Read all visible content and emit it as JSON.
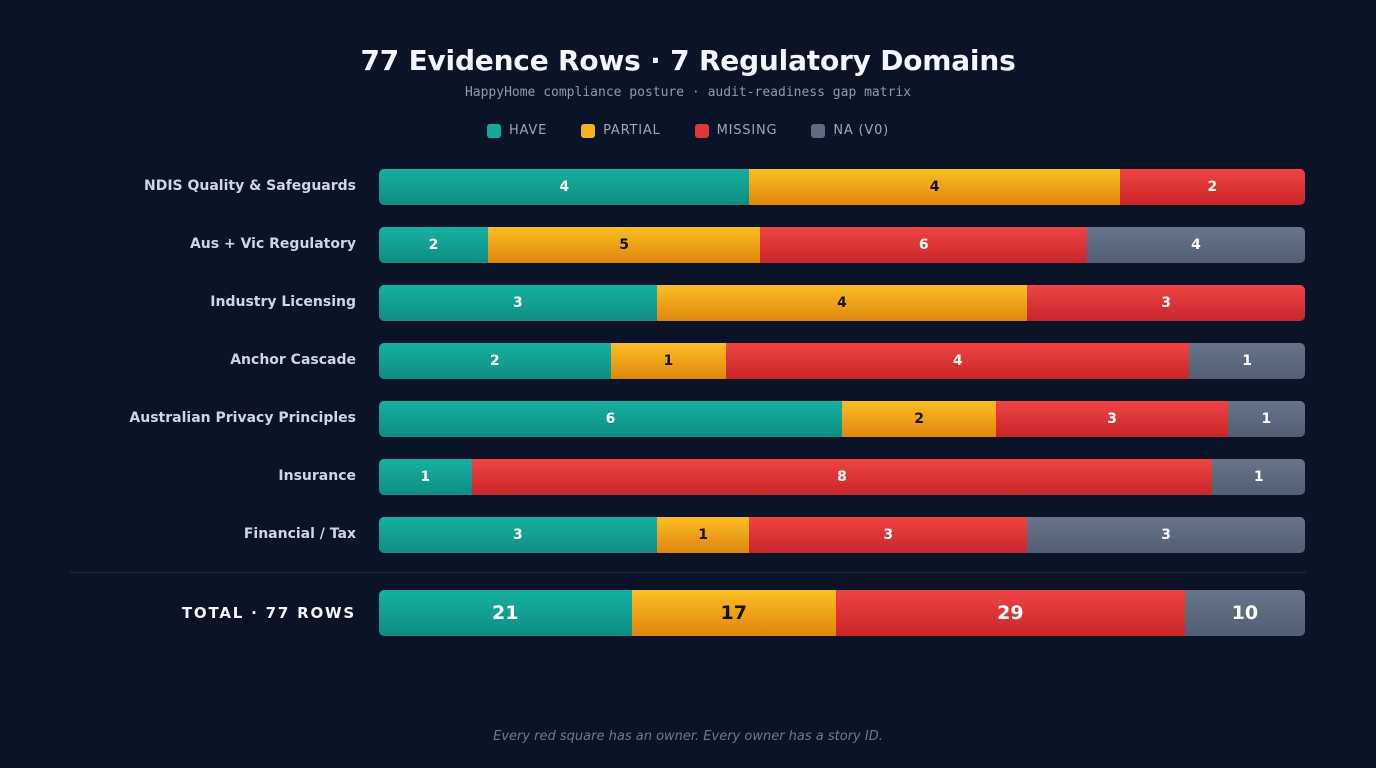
{
  "header": {
    "title": "77 Evidence Rows · 7 Regulatory Domains",
    "subtitle": "HappyHome compliance posture · audit-readiness gap matrix"
  },
  "legend": [
    {
      "label": "HAVE",
      "color": "#14a899"
    },
    {
      "label": "PARTIAL",
      "color": "#f5b41d"
    },
    {
      "label": "MISSING",
      "color": "#e03838"
    },
    {
      "label": "NA (V0)",
      "color": "#5f6b80"
    }
  ],
  "chart_data": {
    "type": "bar",
    "stacked": true,
    "orientation": "horizontal",
    "title": "77 Evidence Rows · 7 Regulatory Domains",
    "subtitle": "HappyHome compliance posture · audit-readiness gap matrix",
    "categories": [
      "NDIS Quality & Safeguards",
      "Aus + Vic Regulatory",
      "Industry Licensing",
      "Anchor Cascade",
      "Australian Privacy Principles",
      "Insurance",
      "Financial / Tax"
    ],
    "series": [
      {
        "name": "HAVE",
        "key": "have",
        "color": "#14a899",
        "values": [
          4,
          2,
          3,
          2,
          6,
          1,
          3
        ]
      },
      {
        "name": "PARTIAL",
        "key": "partial",
        "color": "#f5b41d",
        "values": [
          4,
          5,
          4,
          1,
          2,
          0,
          1
        ]
      },
      {
        "name": "MISSING",
        "key": "missing",
        "color": "#e03838",
        "values": [
          2,
          6,
          3,
          4,
          3,
          8,
          3
        ]
      },
      {
        "name": "NA (V0)",
        "key": "na",
        "color": "#5f6b80",
        "values": [
          0,
          4,
          0,
          1,
          1,
          1,
          3
        ]
      }
    ],
    "total": {
      "label": "TOTAL · 77 ROWS",
      "values": [
        21,
        17,
        29,
        10
      ]
    },
    "legend_position": "top-center",
    "grid": false
  },
  "footer": {
    "text": "Every red square has an owner. Every owner has a story ID."
  }
}
